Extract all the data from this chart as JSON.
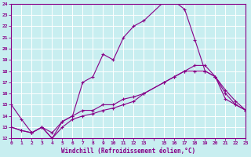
{
  "xlabel": "Windchill (Refroidissement éolien,°C)",
  "background_color": "#c8eef0",
  "grid_color": "#aadddd",
  "line_color": "#880088",
  "spine_color": "#880088",
  "xmin": 0,
  "xmax": 23,
  "ymin": 12,
  "ymax": 24,
  "series1_x": [
    0,
    1,
    2,
    3,
    4,
    5,
    6,
    7,
    8,
    9,
    10,
    11,
    12,
    13,
    15,
    16,
    17,
    18,
    19,
    20,
    21,
    22,
    23
  ],
  "series1_y": [
    15.0,
    13.7,
    12.5,
    13.0,
    12.0,
    13.5,
    14.0,
    17.0,
    17.5,
    19.5,
    19.0,
    21.0,
    22.0,
    22.5,
    24.2,
    24.2,
    23.5,
    20.8,
    18.0,
    17.5,
    16.0,
    15.0,
    14.5
  ],
  "series2_x": [
    0,
    1,
    2,
    3,
    4,
    5,
    6,
    7,
    8,
    9,
    10,
    11,
    12,
    13,
    15,
    16,
    17,
    18,
    19,
    20,
    21,
    22,
    23
  ],
  "series2_y": [
    13.0,
    12.7,
    12.5,
    13.0,
    12.0,
    13.0,
    13.7,
    14.0,
    14.2,
    14.5,
    14.7,
    15.0,
    15.3,
    16.0,
    17.0,
    17.5,
    18.0,
    18.0,
    18.0,
    17.5,
    15.5,
    15.0,
    14.5
  ],
  "series3_x": [
    0,
    1,
    2,
    3,
    4,
    5,
    6,
    7,
    8,
    9,
    10,
    11,
    12,
    13,
    15,
    16,
    17,
    18,
    19,
    20,
    21,
    22,
    23
  ],
  "series3_y": [
    13.0,
    12.7,
    12.5,
    13.0,
    12.5,
    13.5,
    14.0,
    14.5,
    14.5,
    15.0,
    15.0,
    15.5,
    15.7,
    16.0,
    17.0,
    17.5,
    18.0,
    18.5,
    18.5,
    17.5,
    16.3,
    15.3,
    14.5
  ]
}
